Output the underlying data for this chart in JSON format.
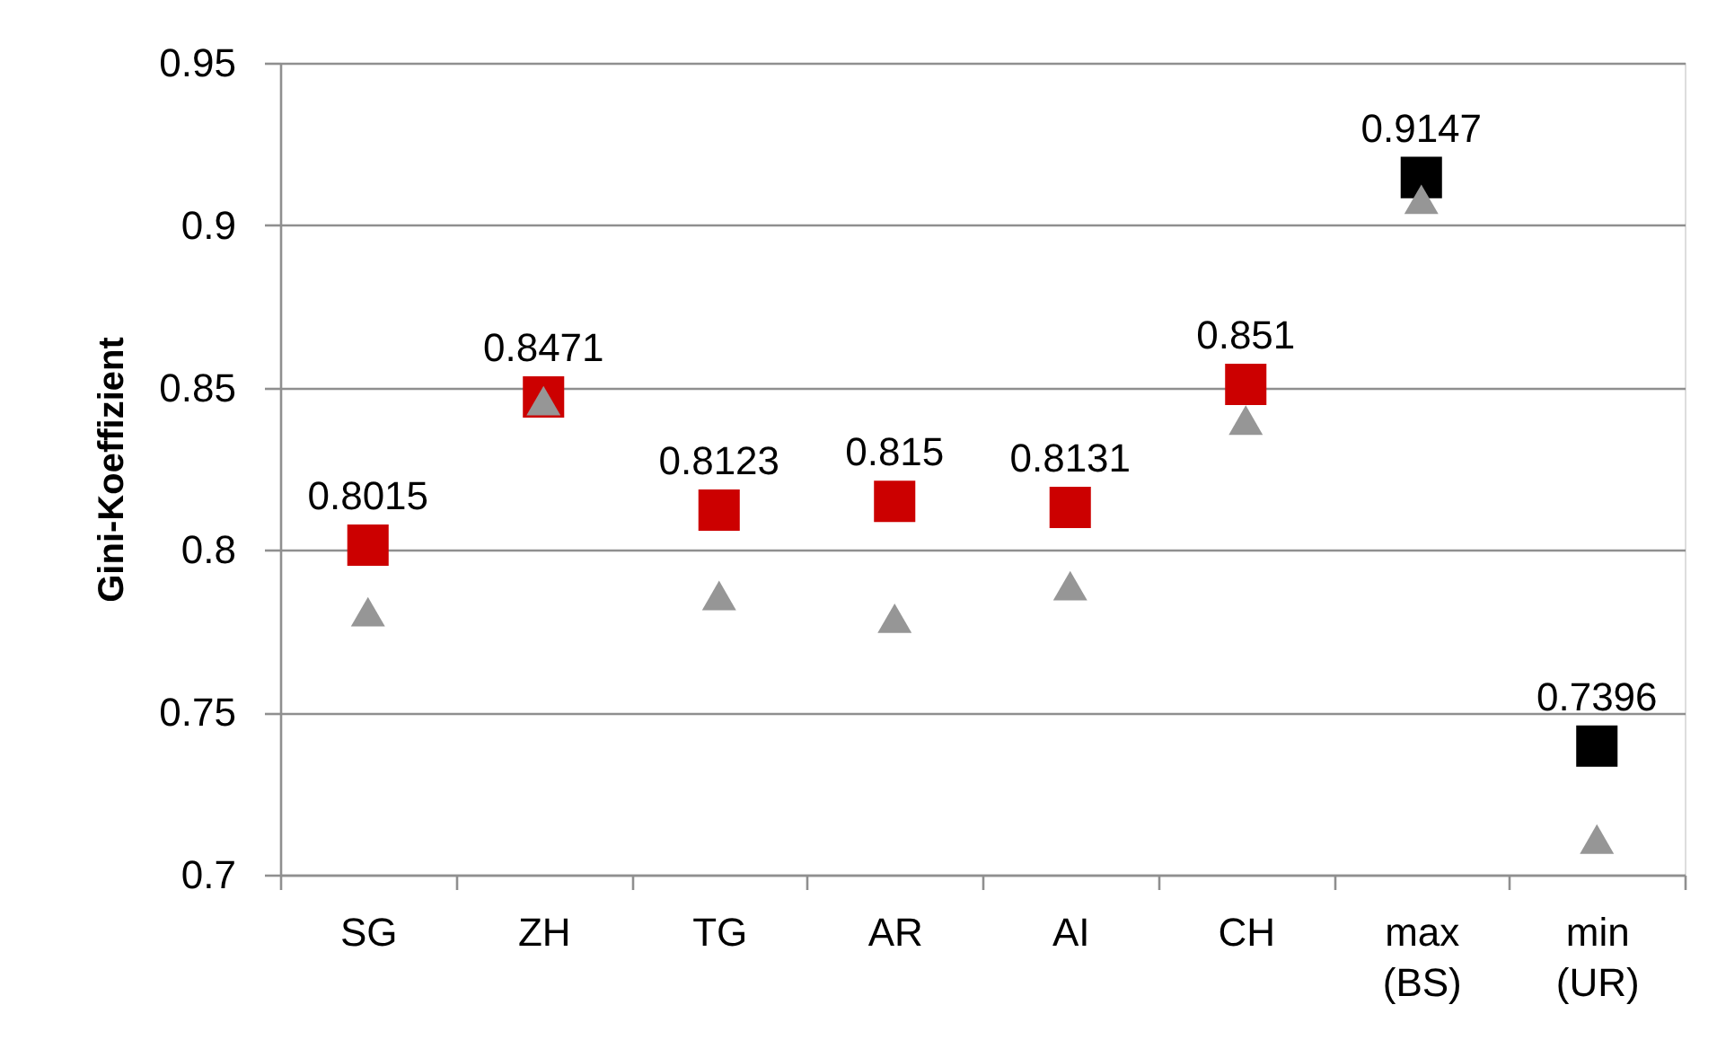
{
  "chart_data": {
    "type": "scatter",
    "ylabel": "Gini-Koeffizient",
    "categories": [
      "SG",
      "ZH",
      "TG",
      "AR",
      "AI",
      "CH",
      "max (BS)",
      "min (UR)"
    ],
    "ylim": [
      0.7,
      0.95
    ],
    "yticks": [
      0.7,
      0.75,
      0.8,
      0.85,
      0.9,
      0.95
    ],
    "grid": "y",
    "series": [
      {
        "marker": "square",
        "colors": [
          "#cc0000",
          "#cc0000",
          "#cc0000",
          "#cc0000",
          "#cc0000",
          "#cc0000",
          "#000000",
          "#000000"
        ],
        "values": [
          0.8015,
          0.8471,
          0.8123,
          0.815,
          0.8131,
          0.851,
          0.9147,
          0.7396
        ],
        "value_labels": [
          "0.8015",
          "0.8471",
          "0.8123",
          "0.815",
          "0.8131",
          "0.851",
          "0.9147",
          "0.7396"
        ]
      },
      {
        "marker": "triangle",
        "color": "#969696",
        "values": [
          0.781,
          0.846,
          0.786,
          0.779,
          0.789,
          0.84,
          0.908,
          0.711
        ]
      }
    ]
  }
}
